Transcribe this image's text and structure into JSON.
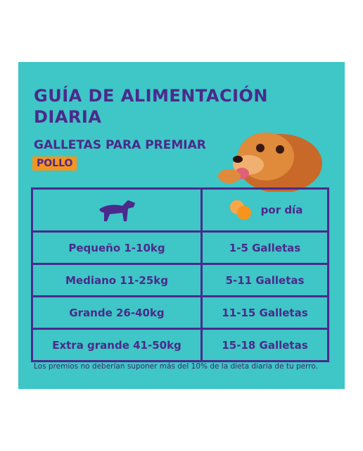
{
  "header": {
    "title_lines": [
      "GUÍA DE ALIMENTACIÓN",
      "DIARIA"
    ],
    "subtitle": "GALLETAS PARA PREMIAR",
    "badge": "POLLO"
  },
  "table": {
    "per_day_label": "por día",
    "rows": [
      [
        "Pequeño 1-10kg",
        "1-5 Galletas"
      ],
      [
        "Mediano 11-25kg",
        "5-11 Galletas"
      ],
      [
        "Grande 26-40kg",
        "11-15 Galletas"
      ],
      [
        "Extra grande 41-50kg",
        "15-18 Galletas"
      ]
    ]
  },
  "footnote": "Los premios no deberían suponer más del 10% de la dieta diaria de tu perro."
}
